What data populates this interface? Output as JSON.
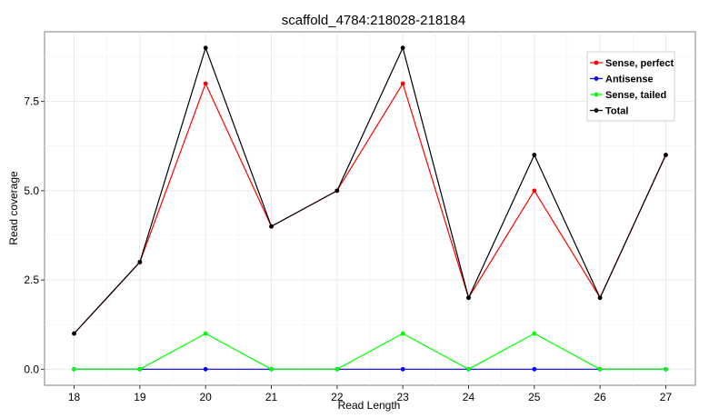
{
  "chart_data": {
    "type": "line",
    "title": "scaffold_4784:218028-218184",
    "xlabel": "Read Length",
    "ylabel": "Read coverage",
    "x": [
      18,
      19,
      20,
      21,
      22,
      23,
      24,
      25,
      26,
      27
    ],
    "x_tick_labels": [
      "18",
      "19",
      "20",
      "21",
      "22",
      "23",
      "24",
      "25",
      "26",
      "27"
    ],
    "xlim": [
      17.55,
      27.45
    ],
    "ylim": [
      -0.45,
      9.45
    ],
    "y_ticks": [
      0,
      2.5,
      5,
      7.5
    ],
    "y_tick_labels": [
      "0.0",
      "2.5",
      "5.0",
      "7.5"
    ],
    "grid": true,
    "legend_position": "top-right",
    "series": [
      {
        "name": "Sense, perfect",
        "color": "#ff0000",
        "values": [
          1,
          3,
          8,
          4,
          5,
          8,
          2,
          5,
          2,
          6
        ]
      },
      {
        "name": "Antisense",
        "color": "#0000ff",
        "values": [
          0,
          0,
          0,
          0,
          0,
          0,
          0,
          0,
          0,
          0
        ]
      },
      {
        "name": "Sense, tailed",
        "color": "#00ff00",
        "values": [
          0,
          0,
          1,
          0,
          0,
          1,
          0,
          1,
          0,
          0
        ]
      },
      {
        "name": "Total",
        "color": "#000000",
        "values": [
          1,
          3,
          9,
          4,
          5,
          9,
          2,
          6,
          2,
          6
        ]
      }
    ]
  }
}
